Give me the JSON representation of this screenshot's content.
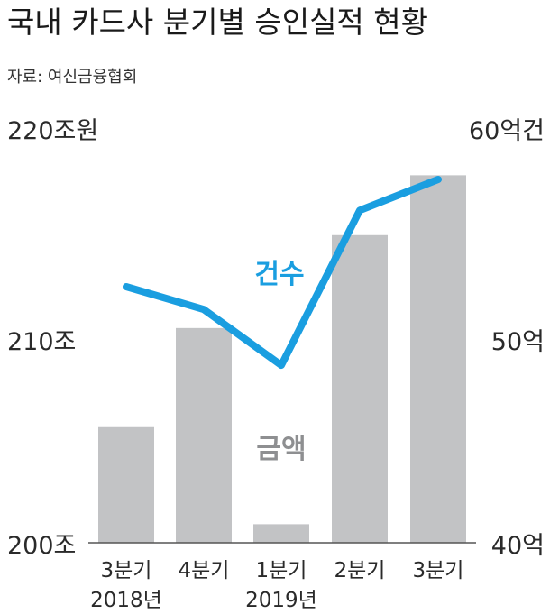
{
  "title": "국내 카드사 분기별 승인실적 현황",
  "source": "자료: 여신금융협회",
  "colors": {
    "bar": "#c2c3c5",
    "line": "#1a9ee0",
    "amount_label": "#8e8f91",
    "axis": "#555555"
  },
  "chart_data": {
    "type": "bar+line",
    "categories": [
      {
        "quarter": "3분기",
        "year": "2018년"
      },
      {
        "quarter": "4분기",
        "year": ""
      },
      {
        "quarter": "1분기",
        "year": "2019년"
      },
      {
        "quarter": "2분기",
        "year": ""
      },
      {
        "quarter": "3분기",
        "year": ""
      }
    ],
    "left_axis": {
      "unit_label": "220조원",
      "ticks": [
        "200조",
        "210조"
      ],
      "range": [
        200,
        220
      ]
    },
    "right_axis": {
      "unit_label": "60억건",
      "ticks": [
        "40억",
        "50억"
      ],
      "range": [
        40,
        60
      ]
    },
    "series": [
      {
        "name": "금액",
        "kind": "bar",
        "axis": "left",
        "values": [
          205.6,
          210.4,
          200.9,
          214.9,
          217.8
        ]
      },
      {
        "name": "건수",
        "kind": "line",
        "axis": "right",
        "values": [
          52.4,
          51.3,
          48.6,
          56.1,
          57.6
        ]
      }
    ]
  }
}
